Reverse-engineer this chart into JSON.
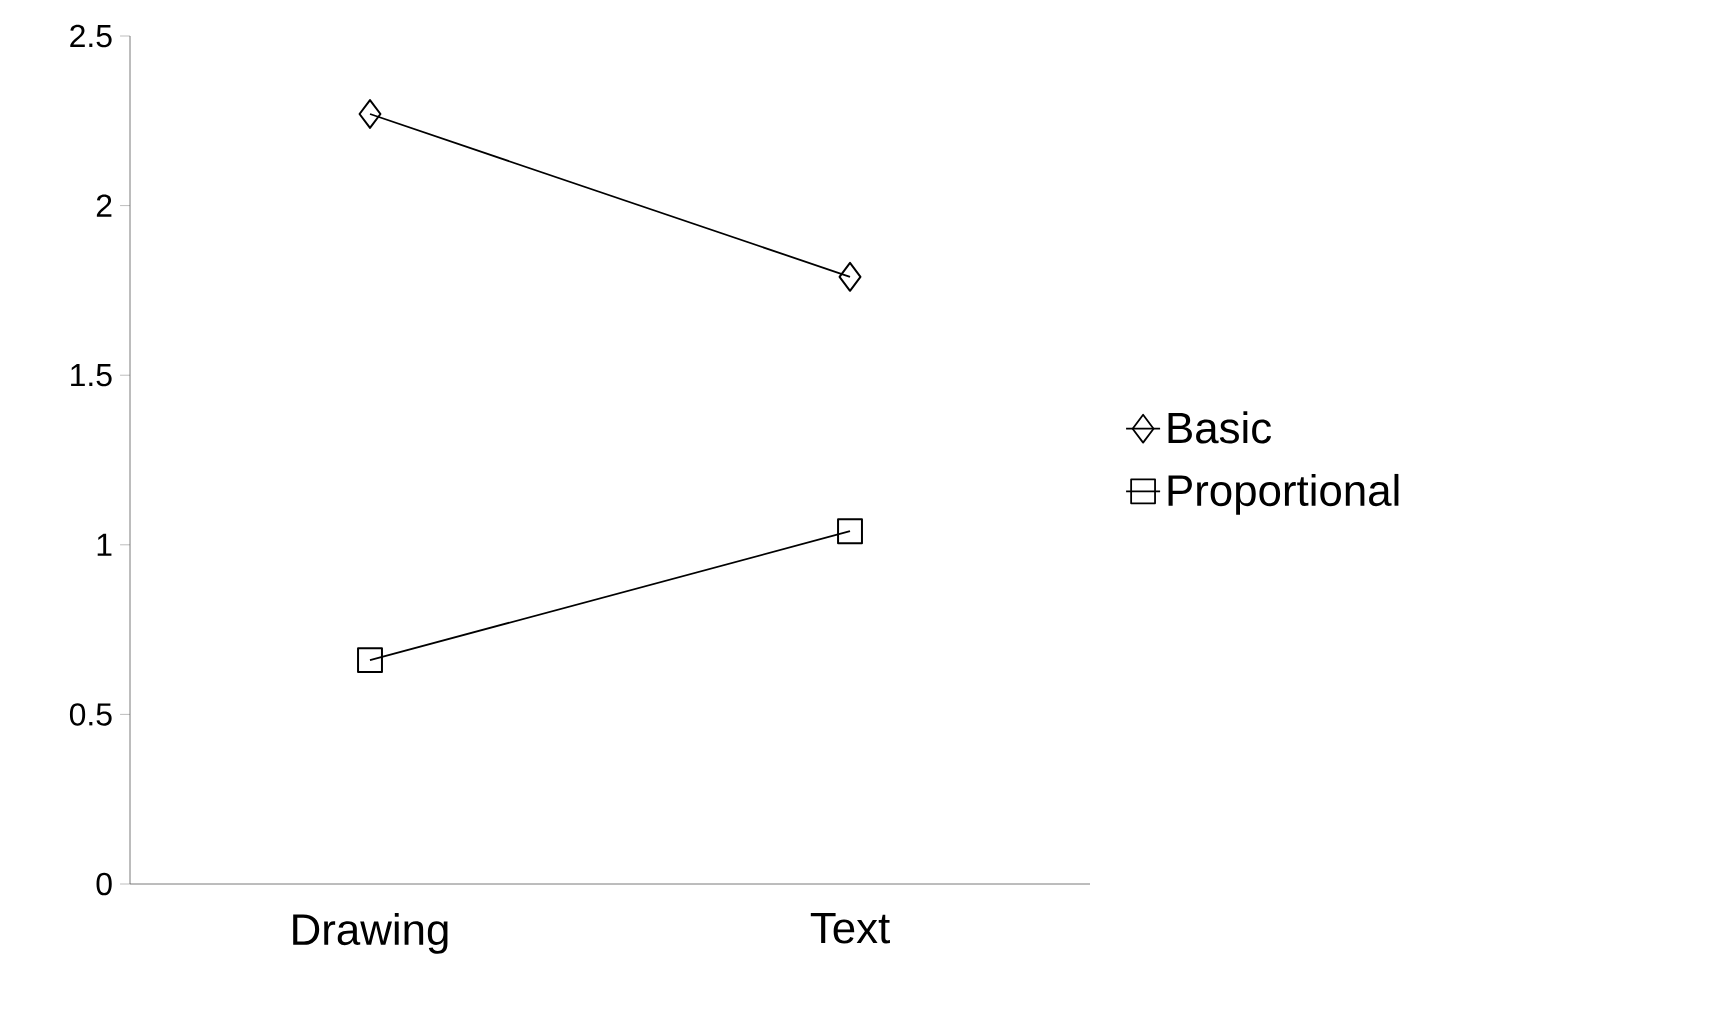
{
  "chart_data": {
    "type": "line",
    "categories": [
      "Drawing",
      "Text"
    ],
    "series": [
      {
        "name": "Basic",
        "color": "#000000",
        "values": [
          2.27,
          1.79
        ],
        "marker": "diamond"
      },
      {
        "name": "Proportional",
        "color": "#000000",
        "values": [
          0.66,
          1.04
        ],
        "marker": "square"
      }
    ],
    "ylim": [
      0,
      2.5
    ],
    "yticks": [
      0,
      0.5,
      1,
      1.5,
      2,
      2.5
    ],
    "legend": "right"
  }
}
